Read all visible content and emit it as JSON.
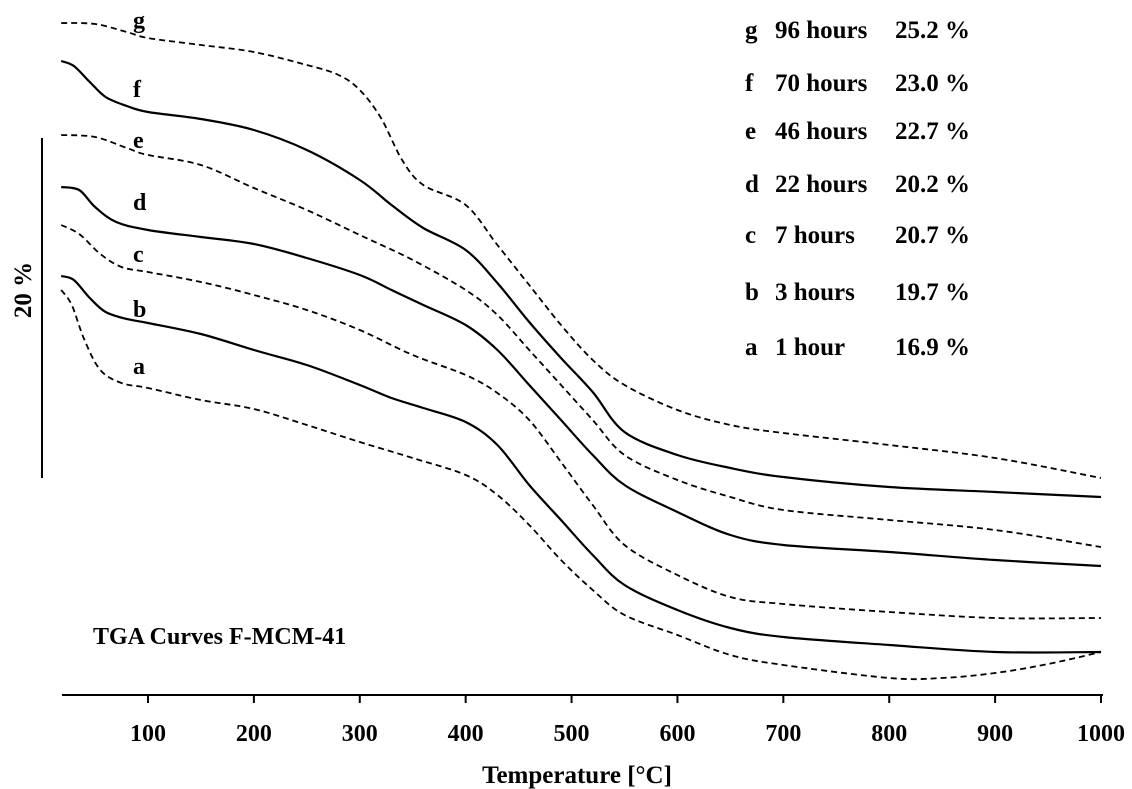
{
  "chart_data": {
    "type": "line",
    "title": "",
    "annotation": "TGA Curves F-MCM-41",
    "xlabel": "Temperature [°C]",
    "ylabel": "",
    "scale_bar_label": "20 %",
    "xlim": [
      18,
      1000
    ],
    "x_ticks": [
      100,
      200,
      300,
      400,
      500,
      600,
      700,
      800,
      900,
      1000
    ],
    "legend": [
      {
        "letter": "g",
        "time": "96 hours",
        "loss": "25.2 %"
      },
      {
        "letter": "f",
        "time": "70 hours",
        "loss": "23.0 %"
      },
      {
        "letter": "e",
        "time": "46 hours",
        "loss": "22.7 %"
      },
      {
        "letter": "d",
        "time": "22 hours",
        "loss": "20.2 %"
      },
      {
        "letter": "c",
        "time": "7 hours",
        "loss": "20.7 %"
      },
      {
        "letter": "b",
        "time": "3 hours",
        "loss": "19.7 %"
      },
      {
        "letter": "a",
        "time": "1 hour",
        "loss": "16.9 %"
      }
    ],
    "series": [
      {
        "label": "g",
        "dashed": true,
        "points": [
          [
            18,
            23
          ],
          [
            50,
            24
          ],
          [
            80,
            32
          ],
          [
            100,
            38
          ],
          [
            150,
            45
          ],
          [
            200,
            52
          ],
          [
            250,
            65
          ],
          [
            280,
            75
          ],
          [
            300,
            90
          ],
          [
            320,
            118
          ],
          [
            340,
            160
          ],
          [
            360,
            185
          ],
          [
            400,
            205
          ],
          [
            430,
            245
          ],
          [
            460,
            285
          ],
          [
            490,
            325
          ],
          [
            520,
            360
          ],
          [
            550,
            385
          ],
          [
            600,
            410
          ],
          [
            650,
            425
          ],
          [
            700,
            433
          ],
          [
            800,
            445
          ],
          [
            900,
            458
          ],
          [
            1000,
            478
          ]
        ]
      },
      {
        "label": "f",
        "dashed": false,
        "points": [
          [
            18,
            61
          ],
          [
            30,
            66
          ],
          [
            45,
            82
          ],
          [
            60,
            97
          ],
          [
            80,
            106
          ],
          [
            100,
            112
          ],
          [
            150,
            119
          ],
          [
            200,
            130
          ],
          [
            250,
            150
          ],
          [
            300,
            180
          ],
          [
            330,
            205
          ],
          [
            360,
            228
          ],
          [
            400,
            250
          ],
          [
            430,
            283
          ],
          [
            460,
            322
          ],
          [
            490,
            358
          ],
          [
            520,
            392
          ],
          [
            550,
            432
          ],
          [
            600,
            455
          ],
          [
            650,
            468
          ],
          [
            700,
            477
          ],
          [
            800,
            487
          ],
          [
            900,
            492
          ],
          [
            1000,
            497
          ]
        ]
      },
      {
        "label": "e",
        "dashed": true,
        "points": [
          [
            18,
            135
          ],
          [
            50,
            137
          ],
          [
            80,
            148
          ],
          [
            100,
            155
          ],
          [
            150,
            165
          ],
          [
            200,
            188
          ],
          [
            250,
            210
          ],
          [
            300,
            235
          ],
          [
            350,
            260
          ],
          [
            400,
            290
          ],
          [
            430,
            315
          ],
          [
            460,
            350
          ],
          [
            490,
            385
          ],
          [
            520,
            420
          ],
          [
            550,
            455
          ],
          [
            600,
            480
          ],
          [
            650,
            497
          ],
          [
            700,
            510
          ],
          [
            800,
            520
          ],
          [
            900,
            530
          ],
          [
            1000,
            547
          ]
        ]
      },
      {
        "label": "d",
        "dashed": false,
        "points": [
          [
            18,
            187
          ],
          [
            35,
            190
          ],
          [
            50,
            207
          ],
          [
            70,
            222
          ],
          [
            100,
            230
          ],
          [
            150,
            237
          ],
          [
            200,
            244
          ],
          [
            250,
            258
          ],
          [
            300,
            275
          ],
          [
            330,
            290
          ],
          [
            360,
            305
          ],
          [
            400,
            325
          ],
          [
            430,
            350
          ],
          [
            460,
            385
          ],
          [
            490,
            420
          ],
          [
            520,
            455
          ],
          [
            550,
            485
          ],
          [
            600,
            512
          ],
          [
            650,
            535
          ],
          [
            700,
            545
          ],
          [
            800,
            552
          ],
          [
            900,
            560
          ],
          [
            1000,
            566
          ]
        ]
      },
      {
        "label": "c",
        "dashed": true,
        "points": [
          [
            18,
            225
          ],
          [
            35,
            234
          ],
          [
            55,
            254
          ],
          [
            75,
            267
          ],
          [
            100,
            272
          ],
          [
            150,
            282
          ],
          [
            200,
            295
          ],
          [
            250,
            310
          ],
          [
            300,
            330
          ],
          [
            350,
            355
          ],
          [
            400,
            375
          ],
          [
            430,
            393
          ],
          [
            460,
            420
          ],
          [
            490,
            462
          ],
          [
            520,
            505
          ],
          [
            550,
            545
          ],
          [
            600,
            575
          ],
          [
            650,
            597
          ],
          [
            700,
            604
          ],
          [
            800,
            612
          ],
          [
            900,
            618
          ],
          [
            1000,
            618
          ]
        ]
      },
      {
        "label": "b",
        "dashed": false,
        "points": [
          [
            18,
            276
          ],
          [
            30,
            280
          ],
          [
            45,
            298
          ],
          [
            60,
            312
          ],
          [
            80,
            319
          ],
          [
            100,
            323
          ],
          [
            150,
            334
          ],
          [
            200,
            350
          ],
          [
            250,
            365
          ],
          [
            300,
            385
          ],
          [
            330,
            398
          ],
          [
            360,
            408
          ],
          [
            400,
            422
          ],
          [
            430,
            445
          ],
          [
            460,
            485
          ],
          [
            490,
            520
          ],
          [
            520,
            555
          ],
          [
            550,
            585
          ],
          [
            600,
            610
          ],
          [
            650,
            628
          ],
          [
            700,
            637
          ],
          [
            800,
            645
          ],
          [
            900,
            652
          ],
          [
            1000,
            652
          ]
        ]
      },
      {
        "label": "a",
        "dashed": true,
        "points": [
          [
            18,
            290
          ],
          [
            28,
            305
          ],
          [
            40,
            340
          ],
          [
            55,
            370
          ],
          [
            75,
            383
          ],
          [
            100,
            388
          ],
          [
            150,
            400
          ],
          [
            200,
            409
          ],
          [
            250,
            425
          ],
          [
            300,
            442
          ],
          [
            350,
            458
          ],
          [
            400,
            475
          ],
          [
            430,
            495
          ],
          [
            460,
            525
          ],
          [
            490,
            560
          ],
          [
            520,
            590
          ],
          [
            550,
            615
          ],
          [
            600,
            635
          ],
          [
            650,
            655
          ],
          [
            700,
            665
          ],
          [
            800,
            678
          ],
          [
            850,
            678
          ],
          [
            900,
            673
          ],
          [
            950,
            664
          ],
          [
            1000,
            652
          ]
        ]
      }
    ]
  }
}
